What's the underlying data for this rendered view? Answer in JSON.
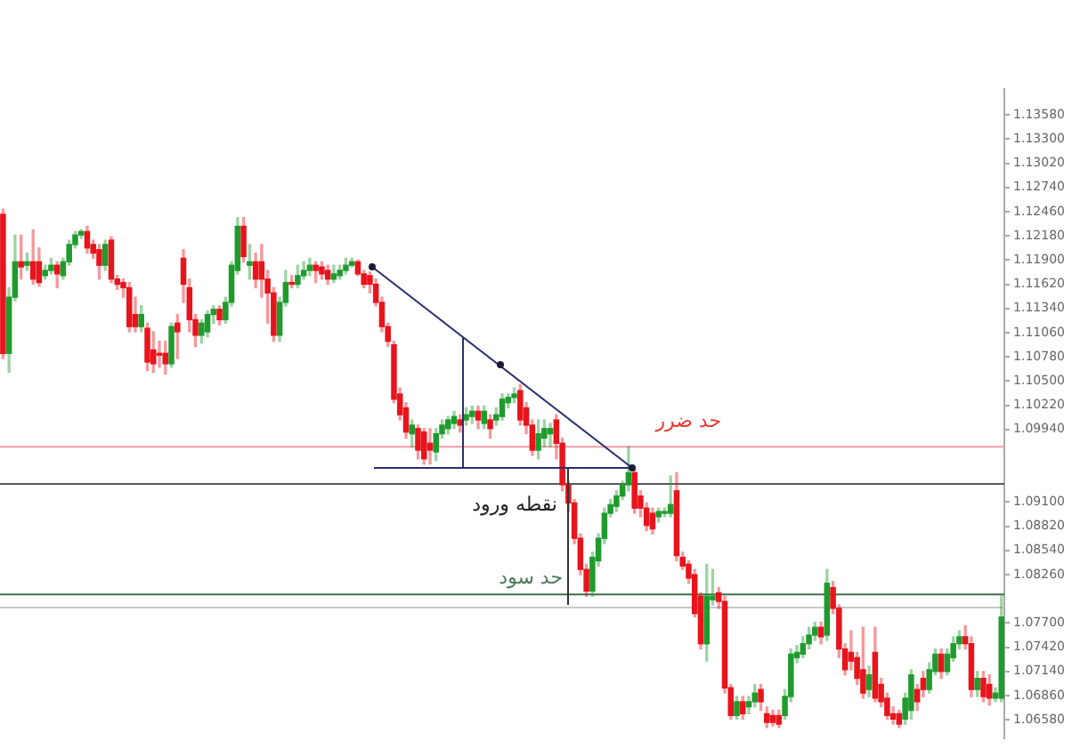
{
  "chart_data": {
    "type": "candlestick",
    "categories": [
      null,
      null,
      null,
      null,
      null,
      null,
      null,
      null,
      null,
      null,
      null,
      null,
      null,
      null,
      null,
      null,
      null,
      null,
      null,
      null,
      null,
      null,
      null,
      null,
      null,
      null,
      null,
      null,
      null,
      null,
      null,
      null,
      null,
      null,
      null,
      null,
      null,
      null,
      null,
      null,
      null,
      null,
      null,
      null,
      null,
      null,
      null,
      null,
      null,
      null,
      null,
      null,
      null,
      null,
      null,
      null,
      null,
      null,
      null,
      null,
      null,
      null,
      null,
      null,
      null,
      null,
      null,
      null,
      null,
      null,
      null,
      null,
      null,
      null,
      null,
      null,
      null,
      null,
      null,
      null,
      null,
      null,
      null,
      null,
      null,
      null,
      null,
      null,
      null,
      null,
      null,
      null,
      null,
      null,
      null,
      null,
      null,
      null,
      null,
      null,
      null,
      null,
      null,
      null,
      null,
      null,
      null,
      null,
      null,
      null,
      null,
      null,
      null,
      null,
      null,
      null,
      null,
      null,
      null,
      null,
      null,
      null,
      null,
      null,
      null,
      null,
      null,
      null,
      null,
      null,
      null,
      null,
      null,
      null,
      null,
      null,
      null,
      null,
      null,
      null,
      null,
      null,
      null,
      null,
      null,
      null,
      null,
      null,
      null,
      null,
      null,
      null,
      null,
      null,
      null,
      null,
      null,
      null,
      null,
      null,
      null,
      null,
      null,
      null,
      null,
      null,
      null
    ],
    "ohlc": [
      [
        1.1243,
        1.1249,
        1.1076,
        1.1082
      ],
      [
        1.1082,
        1.1158,
        1.106,
        1.1147
      ],
      [
        1.1147,
        1.1219,
        1.1143,
        1.1188
      ],
      [
        1.1188,
        1.1219,
        1.1168,
        1.1182
      ],
      [
        1.1184,
        1.1198,
        1.1178,
        1.1188
      ],
      [
        1.1188,
        1.1225,
        1.1162,
        1.1168
      ],
      [
        1.1188,
        1.1204,
        1.116,
        1.1164
      ],
      [
        1.1172,
        1.1184,
        1.1168,
        1.1178
      ],
      [
        1.1178,
        1.1192,
        1.1174,
        1.1184
      ],
      [
        1.1184,
        1.1188,
        1.1158,
        1.1174
      ],
      [
        1.1172,
        1.1192,
        1.1168,
        1.1188
      ],
      [
        1.1188,
        1.1213,
        1.1184,
        1.1208
      ],
      [
        1.1208,
        1.1223,
        1.1204,
        1.1219
      ],
      [
        1.1219,
        1.1225,
        1.1215,
        1.1223
      ],
      [
        1.1223,
        1.1229,
        1.1198,
        1.1204
      ],
      [
        1.1208,
        1.1213,
        1.1192,
        1.1198
      ],
      [
        1.1202,
        1.1208,
        1.1168,
        1.1184
      ],
      [
        1.1184,
        1.1213,
        1.1178,
        1.1208
      ],
      [
        1.1213,
        1.1217,
        1.1164,
        1.1168
      ],
      [
        1.1168,
        1.1172,
        1.1156,
        1.1162
      ],
      [
        1.1164,
        1.1168,
        1.1147,
        1.1158
      ],
      [
        1.1158,
        1.1164,
        1.1107,
        1.1113
      ],
      [
        1.1127,
        1.1147,
        1.1107,
        1.1113
      ],
      [
        1.1113,
        1.1137,
        1.1107,
        1.1127
      ],
      [
        1.1111,
        1.1117,
        1.1062,
        1.1072
      ],
      [
        1.1086,
        1.1107,
        1.106,
        1.107
      ],
      [
        1.1082,
        1.1096,
        1.1066,
        1.108
      ],
      [
        1.1082,
        1.1096,
        1.1058,
        1.107
      ],
      [
        1.107,
        1.1117,
        1.1066,
        1.1113
      ],
      [
        1.1117,
        1.1127,
        1.1076,
        1.1107
      ],
      [
        1.1192,
        1.1202,
        1.1141,
        1.1162
      ],
      [
        1.1158,
        1.1168,
        1.1107,
        1.1121
      ],
      [
        1.1121,
        1.1127,
        1.109,
        1.1103
      ],
      [
        1.1103,
        1.1121,
        1.1094,
        1.1117
      ],
      [
        1.1107,
        1.1131,
        1.1101,
        1.1127
      ],
      [
        1.1127,
        1.1137,
        1.1117,
        1.1133
      ],
      [
        1.1133,
        1.1137,
        1.1115,
        1.1121
      ],
      [
        1.1121,
        1.1147,
        1.1117,
        1.1141
      ],
      [
        1.1141,
        1.1188,
        1.1137,
        1.1184
      ],
      [
        1.1178,
        1.1239,
        1.1174,
        1.1229
      ],
      [
        1.1229,
        1.1239,
        1.1188,
        1.1194
      ],
      [
        1.1184,
        1.1208,
        1.1168,
        1.1188
      ],
      [
        1.1188,
        1.1198,
        1.1158,
        1.1168
      ],
      [
        1.1188,
        1.1208,
        1.1147,
        1.1168
      ],
      [
        1.1168,
        1.1178,
        1.1117,
        1.1152
      ],
      [
        1.1152,
        1.1158,
        1.1096,
        1.1103
      ],
      [
        1.1103,
        1.1147,
        1.1096,
        1.1141
      ],
      [
        1.1141,
        1.1178,
        1.1137,
        1.1164
      ],
      [
        1.1164,
        1.1172,
        1.1158,
        1.1162
      ],
      [
        1.1162,
        1.1184,
        1.1158,
        1.1172
      ],
      [
        1.1172,
        1.1188,
        1.1168,
        1.1178
      ],
      [
        1.1178,
        1.1192,
        1.1172,
        1.1184
      ],
      [
        1.1184,
        1.1188,
        1.1164,
        1.1178
      ],
      [
        1.1182,
        1.1188,
        1.1168,
        1.1174
      ],
      [
        1.1178,
        1.1184,
        1.1162,
        1.1168
      ],
      [
        1.1168,
        1.1184,
        1.1164,
        1.1174
      ],
      [
        1.1172,
        1.1184,
        1.1168,
        1.1178
      ],
      [
        1.1178,
        1.1192,
        1.1174,
        1.1184
      ],
      [
        1.1184,
        1.1192,
        1.1182,
        1.1188
      ],
      [
        1.1188,
        1.119,
        1.1172,
        1.1174
      ],
      [
        1.1174,
        1.1178,
        1.1158,
        1.1162
      ],
      [
        1.1172,
        1.1176,
        1.1152,
        1.1162
      ],
      [
        1.1162,
        1.1168,
        1.1137,
        1.1141
      ],
      [
        1.1141,
        1.1147,
        1.1107,
        1.1113
      ],
      [
        1.1113,
        1.1117,
        1.109,
        1.1096
      ],
      [
        1.1092,
        1.1096,
        1.1025,
        1.1029
      ],
      [
        1.1035,
        1.1042,
        1.1005,
        1.1011
      ],
      [
        1.1019,
        1.1025,
        1.0984,
        1.0991
      ],
      [
        1.0989,
        1.1005,
        1.0974,
        1.0999
      ],
      [
        1.0995,
        1.0999,
        1.096,
        1.097
      ],
      [
        1.0991,
        1.0995,
        1.0954,
        1.096
      ],
      [
        1.0978,
        1.0995,
        1.0954,
        1.097
      ],
      [
        1.0968,
        1.0995,
        1.0958,
        1.0989
      ],
      [
        1.0989,
        1.1005,
        1.0984,
        1.0999
      ],
      [
        1.0995,
        1.1009,
        1.0989,
        1.1005
      ],
      [
        1.1001,
        1.1015,
        1.0995,
        1.1009
      ],
      [
        1.1005,
        1.1011,
        1.0991,
        1.0999
      ],
      [
        1.1005,
        1.1019,
        1.0999,
        1.1011
      ],
      [
        1.1009,
        1.1021,
        1.1001,
        1.1015
      ],
      [
        1.1015,
        1.1021,
        1.0995,
        1.1005
      ],
      [
        1.1001,
        1.1021,
        1.0995,
        1.1015
      ],
      [
        1.1005,
        1.1011,
        1.0984,
        1.0995
      ],
      [
        1.1005,
        1.1019,
        1.0999,
        1.1011
      ],
      [
        1.1009,
        1.1035,
        1.1005,
        1.1029
      ],
      [
        1.1025,
        1.1035,
        1.1019,
        1.1031
      ],
      [
        1.1031,
        1.1042,
        1.1025,
        1.1035
      ],
      [
        1.1039,
        1.1046,
        1.0999,
        1.1005
      ],
      [
        1.1019,
        1.1025,
        1.0989,
        1.0999
      ],
      [
        1.0999,
        1.1005,
        1.0964,
        1.097
      ],
      [
        1.097,
        1.1005,
        1.096,
        1.0989
      ],
      [
        1.0984,
        1.1005,
        1.0974,
        1.0995
      ],
      [
        1.0989,
        1.1001,
        1.0974,
        1.0995
      ],
      [
        1.1005,
        1.1011,
        1.096,
        1.0978
      ],
      [
        1.0978,
        1.0984,
        1.0923,
        1.093
      ],
      [
        1.093,
        1.0934,
        1.0899,
        1.0909
      ],
      [
        1.0909,
        1.0913,
        1.0862,
        1.0868
      ],
      [
        1.0868,
        1.0873,
        1.0826,
        1.0832
      ],
      [
        1.0832,
        1.0838,
        1.0801,
        1.0807
      ],
      [
        1.0807,
        1.0852,
        1.0801,
        1.0846
      ],
      [
        1.0842,
        1.0873,
        1.0836,
        1.0868
      ],
      [
        1.0868,
        1.0903,
        1.0862,
        1.0897
      ],
      [
        1.0897,
        1.0913,
        1.0893,
        1.0907
      ],
      [
        1.0905,
        1.0923,
        1.0899,
        1.0917
      ],
      [
        1.0917,
        1.0934,
        1.0913,
        1.093
      ],
      [
        1.093,
        1.0974,
        1.0923,
        1.0944
      ],
      [
        1.0944,
        1.0948,
        1.0897,
        1.0903
      ],
      [
        1.0917,
        1.0923,
        1.0893,
        1.0903
      ],
      [
        1.0903,
        1.0909,
        1.0877,
        1.0883
      ],
      [
        1.0897,
        1.0903,
        1.0873,
        1.0879
      ],
      [
        1.0893,
        1.0903,
        1.0887,
        1.0899
      ],
      [
        1.0897,
        1.0903,
        1.0893,
        1.0899
      ],
      [
        1.0897,
        1.094,
        1.0893,
        1.0907
      ],
      [
        1.0923,
        1.0944,
        1.0842,
        1.0848
      ],
      [
        1.0846,
        1.0852,
        1.0832,
        1.0836
      ],
      [
        1.0838,
        1.0842,
        1.0816,
        1.0822
      ],
      [
        1.0826,
        1.0832,
        1.0777,
        1.0781
      ],
      [
        1.0801,
        1.0805,
        1.074,
        1.0746
      ],
      [
        1.0746,
        1.0838,
        1.0726,
        1.0801
      ],
      [
        1.0797,
        1.0832,
        1.0791,
        1.0801
      ],
      [
        1.0805,
        1.0811,
        1.0787,
        1.0795
      ],
      [
        1.0795,
        1.0801,
        1.0689,
        1.0695
      ],
      [
        1.0695,
        1.0699,
        1.0659,
        1.0663
      ],
      [
        1.0663,
        1.0685,
        1.0659,
        1.0679
      ],
      [
        1.0679,
        1.0685,
        1.0659,
        1.0665
      ],
      [
        1.0673,
        1.0685,
        1.0665,
        1.0679
      ],
      [
        1.0679,
        1.0699,
        1.0673,
        1.0689
      ],
      [
        1.0693,
        1.0699,
        1.0669,
        1.0679
      ],
      [
        1.0665,
        1.0673,
        1.0649,
        1.0655
      ],
      [
        1.0663,
        1.0669,
        1.0651,
        1.0655
      ],
      [
        1.0663,
        1.0669,
        1.0649,
        1.0653
      ],
      [
        1.0663,
        1.0693,
        1.0659,
        1.0685
      ],
      [
        1.0685,
        1.074,
        1.0679,
        1.0734
      ],
      [
        1.073,
        1.0744,
        1.0724,
        1.0736
      ],
      [
        1.0734,
        1.0754,
        1.073,
        1.0746
      ],
      [
        1.0746,
        1.0765,
        1.074,
        1.0756
      ],
      [
        1.0756,
        1.0771,
        1.075,
        1.0765
      ],
      [
        1.0765,
        1.0771,
        1.0746,
        1.0754
      ],
      [
        1.0756,
        1.0832,
        1.075,
        1.0816
      ],
      [
        1.0811,
        1.0818,
        1.0781,
        1.0787
      ],
      [
        1.0787,
        1.0791,
        1.073,
        1.074
      ],
      [
        1.074,
        1.0746,
        1.071,
        1.0716
      ],
      [
        1.0736,
        1.0761,
        1.0716,
        1.0726
      ],
      [
        1.073,
        1.0736,
        1.0699,
        1.0706
      ],
      [
        1.0716,
        1.0765,
        1.0683,
        1.0689
      ],
      [
        1.0693,
        1.072,
        1.0685,
        1.071
      ],
      [
        1.0736,
        1.0765,
        1.0679,
        1.0683
      ],
      [
        1.0699,
        1.0706,
        1.0673,
        1.0679
      ],
      [
        1.0683,
        1.0689,
        1.0659,
        1.0663
      ],
      [
        1.0665,
        1.0673,
        1.0653,
        1.0659
      ],
      [
        1.0665,
        1.0669,
        1.0649,
        1.0653
      ],
      [
        1.0659,
        1.0689,
        1.0653,
        1.0683
      ],
      [
        1.0669,
        1.0716,
        1.0659,
        1.071
      ],
      [
        1.0693,
        1.0699,
        1.0669,
        1.0679
      ],
      [
        1.0706,
        1.0714,
        1.0685,
        1.0693
      ],
      [
        1.0693,
        1.0724,
        1.0689,
        1.0716
      ],
      [
        1.0714,
        1.074,
        1.071,
        1.0734
      ],
      [
        1.0734,
        1.074,
        1.0706,
        1.0714
      ],
      [
        1.0714,
        1.074,
        1.071,
        1.0734
      ],
      [
        1.073,
        1.0754,
        1.0726,
        1.0746
      ],
      [
        1.0746,
        1.0761,
        1.074,
        1.0754
      ],
      [
        1.0754,
        1.0767,
        1.074,
        1.0746
      ],
      [
        1.0746,
        1.0754,
        1.0685,
        1.0693
      ],
      [
        1.0693,
        1.0714,
        1.0685,
        1.0706
      ],
      [
        1.0706,
        1.0714,
        1.0679,
        1.0685
      ],
      [
        1.0699,
        1.071,
        1.0675,
        1.0683
      ],
      [
        1.0683,
        1.0695,
        1.0679,
        1.0689
      ],
      [
        1.0683,
        1.0801,
        1.0679,
        1.0777
      ]
    ],
    "colors": [
      "#e8141c",
      "#1f9b2d",
      "#1f9b2d",
      "#e8141c",
      "#1f9b2d",
      "#e8141c",
      "#e8141c",
      "#1f9b2d",
      "#1f9b2d",
      "#e8141c",
      "#1f9b2d",
      "#1f9b2d",
      "#1f9b2d",
      "#1f9b2d",
      "#e8141c",
      "#e8141c",
      "#e8141c",
      "#1f9b2d",
      "#e8141c",
      "#e8141c",
      "#e8141c",
      "#e8141c",
      "#e8141c",
      "#1f9b2d",
      "#e8141c",
      "#e8141c",
      "#e8141c",
      "#e8141c",
      "#1f9b2d",
      "#e8141c",
      "#e8141c",
      "#e8141c",
      "#e8141c",
      "#1f9b2d",
      "#1f9b2d",
      "#1f9b2d",
      "#e8141c",
      "#1f9b2d",
      "#1f9b2d",
      "#1f9b2d",
      "#e8141c",
      "#1f9b2d",
      "#e8141c",
      "#e8141c",
      "#e8141c",
      "#e8141c",
      "#1f9b2d",
      "#1f9b2d",
      "#e8141c",
      "#1f9b2d",
      "#1f9b2d",
      "#1f9b2d",
      "#e8141c",
      "#e8141c",
      "#e8141c",
      "#1f9b2d",
      "#1f9b2d",
      "#1f9b2d",
      "#1f9b2d",
      "#e8141c",
      "#e8141c",
      "#e8141c",
      "#e8141c",
      "#e8141c",
      "#e8141c",
      "#e8141c",
      "#e8141c",
      "#e8141c",
      "#1f9b2d",
      "#e8141c",
      "#e8141c",
      "#e8141c",
      "#1f9b2d",
      "#1f9b2d",
      "#1f9b2d",
      "#1f9b2d",
      "#e8141c",
      "#1f9b2d",
      "#1f9b2d",
      "#e8141c",
      "#1f9b2d",
      "#e8141c",
      "#1f9b2d",
      "#1f9b2d",
      "#1f9b2d",
      "#1f9b2d",
      "#e8141c",
      "#e8141c",
      "#e8141c",
      "#1f9b2d",
      "#1f9b2d",
      "#1f9b2d",
      "#e8141c",
      "#e8141c",
      "#e8141c",
      "#e8141c",
      "#e8141c",
      "#e8141c",
      "#1f9b2d",
      "#1f9b2d",
      "#1f9b2d",
      "#1f9b2d",
      "#1f9b2d",
      "#1f9b2d",
      "#1f9b2d",
      "#e8141c",
      "#e8141c",
      "#e8141c",
      "#e8141c",
      "#1f9b2d",
      "#1f9b2d",
      "#1f9b2d",
      "#e8141c",
      "#e8141c",
      "#e8141c",
      "#e8141c",
      "#e8141c",
      "#1f9b2d",
      "#1f9b2d",
      "#e8141c",
      "#e8141c",
      "#e8141c",
      "#1f9b2d",
      "#e8141c",
      "#1f9b2d",
      "#1f9b2d",
      "#e8141c",
      "#e8141c",
      "#e8141c",
      "#e8141c",
      "#1f9b2d",
      "#1f9b2d",
      "#1f9b2d",
      "#1f9b2d",
      "#1f9b2d",
      "#1f9b2d",
      "#e8141c",
      "#1f9b2d",
      "#e8141c",
      "#e8141c",
      "#e8141c",
      "#e8141c",
      "#e8141c",
      "#e8141c",
      "#1f9b2d",
      "#e8141c",
      "#e8141c",
      "#e8141c",
      "#e8141c",
      "#e8141c",
      "#1f9b2d",
      "#1f9b2d",
      "#e8141c",
      "#e8141c",
      "#1f9b2d",
      "#1f9b2d",
      "#e8141c",
      "#1f9b2d",
      "#1f9b2d",
      "#1f9b2d",
      "#e8141c",
      "#e8141c",
      "#1f9b2d",
      "#e8141c",
      "#e8141c",
      "#1f9b2d",
      "#1f9b2d"
    ],
    "ylim": [
      1.0637,
      1.1388
    ],
    "yticks": [
      {
        "value": 1.0658,
        "label": "1.06580"
      },
      {
        "value": 1.0686,
        "label": "1.06860"
      },
      {
        "value": 1.0714,
        "label": "1.07140"
      },
      {
        "value": 1.0742,
        "label": "1.07420"
      },
      {
        "value": 1.077,
        "label": "1.07700"
      },
      {
        "value": 1.0826,
        "label": "1.08260"
      },
      {
        "value": 1.0854,
        "label": "1.08540"
      },
      {
        "value": 1.0882,
        "label": "1.08820"
      },
      {
        "value": 1.091,
        "label": "1.09100"
      },
      {
        "value": 1.0994,
        "label": "1.09940"
      },
      {
        "value": 1.1022,
        "label": "1.10220"
      },
      {
        "value": 1.105,
        "label": "1.10500"
      },
      {
        "value": 1.1078,
        "label": "1.10780"
      },
      {
        "value": 1.1106,
        "label": "1.11060"
      },
      {
        "value": 1.1134,
        "label": "1.11340"
      },
      {
        "value": 1.1162,
        "label": "1.11620"
      },
      {
        "value": 1.119,
        "label": "1.11900"
      },
      {
        "value": 1.1218,
        "label": "1.12180"
      },
      {
        "value": 1.1246,
        "label": "1.12460"
      },
      {
        "value": 1.1274,
        "label": "1.12740"
      },
      {
        "value": 1.1302,
        "label": "1.13020"
      },
      {
        "value": 1.133,
        "label": "1.13300"
      },
      {
        "value": 1.1358,
        "label": "1.13580"
      }
    ],
    "tick_labels": "y",
    "ref_lines": [
      {
        "axis": "y",
        "value": 1.0974,
        "color": "#f29ca5"
      },
      {
        "axis": "y",
        "value": 1.0931,
        "color": "#5a5a5a"
      },
      {
        "axis": "y",
        "value": 1.0803,
        "color": "#3f6e48"
      },
      {
        "axis": "y",
        "value": 1.0788,
        "color": "#c8c8c8"
      }
    ],
    "annotations": [
      {
        "text": "حد ضرر",
        "y": 1.0974
      },
      {
        "text": "نقطه ورود",
        "y": 1.0931
      },
      {
        "text": "حد سود",
        "y": 1.0803
      }
    ]
  }
}
